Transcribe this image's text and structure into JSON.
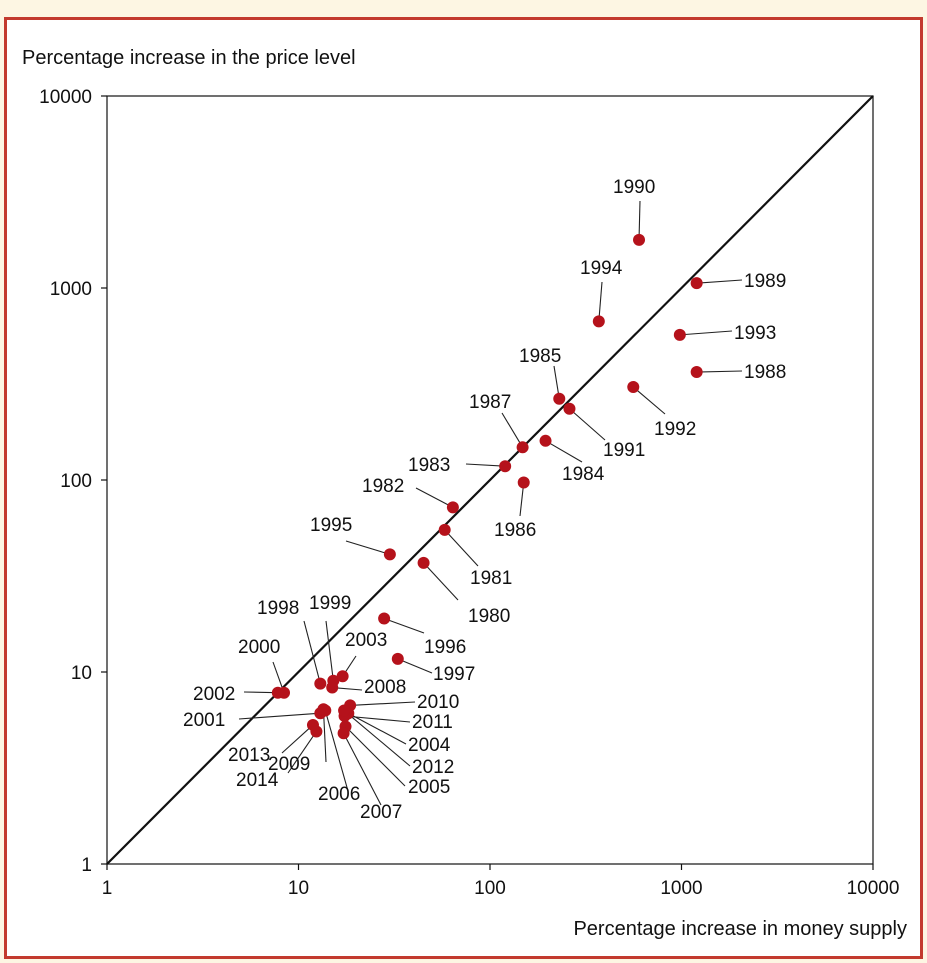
{
  "chart_data": {
    "type": "scatter",
    "title": "",
    "xlabel": "Percentage increase in money supply",
    "ylabel": "Percentage increase in the price level",
    "xscale": "log",
    "yscale": "log",
    "xlim": [
      1,
      10000
    ],
    "ylim": [
      1,
      10000
    ],
    "x_ticks": [
      "1",
      "10",
      "100",
      "1000",
      "10000"
    ],
    "y_ticks": [
      "1",
      "10",
      "100",
      "1000",
      "10000"
    ],
    "reference_line": "45-degree line (y = x)",
    "grid": false,
    "colors": {
      "point": "#b5121b",
      "line": "#111111",
      "border": "#c33a2e",
      "outer_background": "#fdf6e3"
    },
    "points": [
      {
        "label": "1980",
        "x": 45,
        "y": 37
      },
      {
        "label": "1981",
        "x": 58,
        "y": 55
      },
      {
        "label": "1982",
        "x": 64,
        "y": 72
      },
      {
        "label": "1983",
        "x": 120,
        "y": 118
      },
      {
        "label": "1984",
        "x": 195,
        "y": 160
      },
      {
        "label": "1985",
        "x": 230,
        "y": 265
      },
      {
        "label": "1986",
        "x": 150,
        "y": 97
      },
      {
        "label": "1987",
        "x": 148,
        "y": 148
      },
      {
        "label": "1988",
        "x": 1200,
        "y": 365
      },
      {
        "label": "1989",
        "x": 1200,
        "y": 1060
      },
      {
        "label": "1990",
        "x": 600,
        "y": 1780
      },
      {
        "label": "1991",
        "x": 260,
        "y": 235
      },
      {
        "label": "1992",
        "x": 560,
        "y": 305
      },
      {
        "label": "1993",
        "x": 980,
        "y": 570
      },
      {
        "label": "1994",
        "x": 370,
        "y": 670
      },
      {
        "label": "1995",
        "x": 30,
        "y": 41
      },
      {
        "label": "1996",
        "x": 28,
        "y": 19
      },
      {
        "label": "1997",
        "x": 33,
        "y": 11.7
      },
      {
        "label": "1998",
        "x": 13,
        "y": 8.7
      },
      {
        "label": "1999",
        "x": 15.2,
        "y": 9.0
      },
      {
        "label": "2000",
        "x": 8.4,
        "y": 7.8
      },
      {
        "label": "2001",
        "x": 13.0,
        "y": 6.1
      },
      {
        "label": "2002",
        "x": 7.8,
        "y": 7.8
      },
      {
        "label": "2003",
        "x": 17.0,
        "y": 9.5
      },
      {
        "label": "2004",
        "x": 18.2,
        "y": 6.1
      },
      {
        "label": "2005",
        "x": 17.6,
        "y": 5.2
      },
      {
        "label": "2006",
        "x": 13.8,
        "y": 6.3
      },
      {
        "label": "2007",
        "x": 17.2,
        "y": 4.8
      },
      {
        "label": "2008",
        "x": 15.0,
        "y": 8.3
      },
      {
        "label": "2009",
        "x": 13.5,
        "y": 6.4
      },
      {
        "label": "2010",
        "x": 18.6,
        "y": 6.7
      },
      {
        "label": "2011",
        "x": 17.4,
        "y": 5.9
      },
      {
        "label": "2012",
        "x": 17.3,
        "y": 6.3
      },
      {
        "label": "2013",
        "x": 11.9,
        "y": 5.3
      },
      {
        "label": "2014",
        "x": 12.4,
        "y": 4.9
      }
    ]
  }
}
